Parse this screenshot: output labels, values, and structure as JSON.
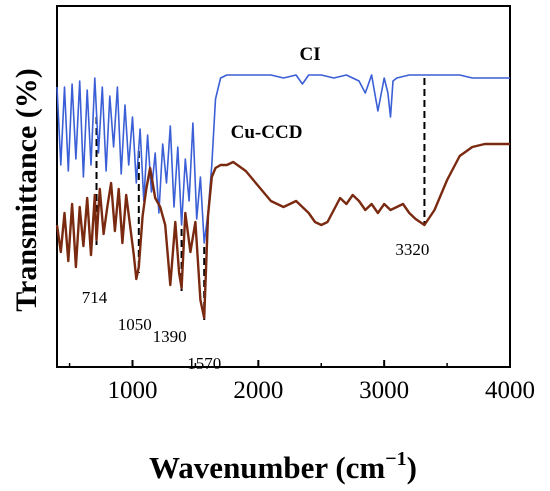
{
  "chart_data": {
    "type": "line",
    "xlabel": "Wavenumber (cm",
    "xlabel_sup": "−1",
    "xlabel_end": ")",
    "ylabel": "Transmittance (%)",
    "xlim": [
      400,
      4000
    ],
    "ylim": [
      0,
      100
    ],
    "xticks": [
      1000,
      2000,
      3000,
      4000
    ],
    "xtick_labels": [
      "1000",
      "2000",
      "3000",
      "4000"
    ],
    "grid": false,
    "series": [
      {
        "name": "CI",
        "color": "#3b5fd6",
        "x": [
          400,
          430,
          460,
          490,
          520,
          550,
          580,
          610,
          640,
          670,
          700,
          730,
          760,
          790,
          820,
          850,
          880,
          910,
          940,
          970,
          1000,
          1030,
          1060,
          1090,
          1120,
          1150,
          1180,
          1210,
          1240,
          1270,
          1300,
          1330,
          1360,
          1390,
          1420,
          1450,
          1480,
          1510,
          1540,
          1570,
          1600,
          1630,
          1660,
          1700,
          1750,
          1800,
          1900,
          2000,
          2100,
          2200,
          2300,
          2350,
          2400,
          2500,
          2600,
          2700,
          2800,
          2850,
          2900,
          2950,
          3000,
          3030,
          3050,
          3070,
          3100,
          3200,
          3320,
          3400,
          3500,
          3600,
          3700,
          3800,
          3900,
          4000
        ],
        "y": [
          86,
          60,
          86,
          58,
          87,
          62,
          88,
          56,
          85,
          60,
          89,
          64,
          86,
          58,
          83,
          66,
          86,
          57,
          80,
          60,
          76,
          54,
          72,
          48,
          70,
          51,
          64,
          44,
          67,
          54,
          73,
          46,
          66,
          40,
          62,
          48,
          74,
          42,
          56,
          34,
          44,
          60,
          82,
          89,
          90,
          90,
          90,
          90,
          90,
          89,
          90,
          87,
          90,
          90,
          89,
          90,
          88,
          84,
          90,
          78,
          89,
          84,
          76,
          88,
          89,
          90,
          90,
          90,
          90,
          90,
          89,
          89,
          89,
          89
        ]
      },
      {
        "name": "Cu-CCD",
        "color": "#7a2a10",
        "x": [
          400,
          430,
          460,
          490,
          520,
          550,
          580,
          610,
          640,
          670,
          700,
          714,
          740,
          770,
          800,
          830,
          860,
          890,
          920,
          950,
          980,
          1010,
          1030,
          1050,
          1080,
          1110,
          1140,
          1180,
          1220,
          1260,
          1300,
          1340,
          1370,
          1390,
          1420,
          1460,
          1500,
          1540,
          1570,
          1600,
          1630,
          1660,
          1700,
          1750,
          1800,
          1900,
          2000,
          2100,
          2200,
          2300,
          2400,
          2450,
          2500,
          2550,
          2600,
          2650,
          2700,
          2750,
          2800,
          2850,
          2900,
          2950,
          3000,
          3050,
          3100,
          3150,
          3200,
          3250,
          3320,
          3400,
          3500,
          3600,
          3700,
          3800,
          3900,
          4000
        ],
        "y": [
          40,
          31,
          44,
          28,
          47,
          26,
          46,
          33,
          49,
          30,
          50,
          35,
          52,
          37,
          46,
          54,
          38,
          52,
          34,
          50,
          40,
          30,
          22,
          26,
          43,
          52,
          59,
          49,
          46,
          40,
          20,
          41,
          24,
          19,
          44,
          31,
          41,
          15,
          9,
          43,
          56,
          59,
          60,
          60,
          61,
          58,
          53,
          48,
          46,
          48,
          44,
          41,
          40,
          41,
          45,
          49,
          47,
          50,
          48,
          45,
          47,
          44,
          47,
          45,
          46,
          47,
          44,
          42,
          40,
          45,
          55,
          63,
          66,
          67,
          67,
          67
        ]
      }
    ],
    "series_labels": [
      "CI",
      "Cu-CCD"
    ],
    "annotations": [
      {
        "x": 714,
        "label": "714"
      },
      {
        "x": 1050,
        "label": "1050"
      },
      {
        "x": 1390,
        "label": "1390"
      },
      {
        "x": 1570,
        "label": "1570"
      },
      {
        "x": 3320,
        "label": "3320"
      }
    ]
  }
}
